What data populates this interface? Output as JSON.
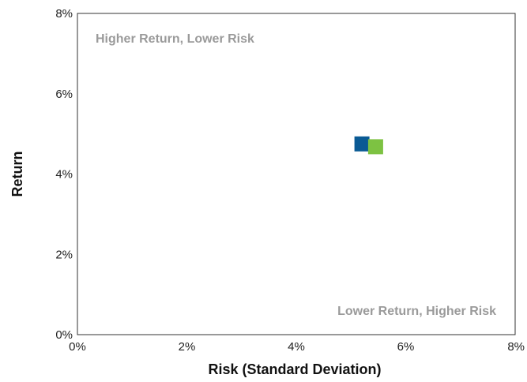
{
  "chart_data": {
    "type": "scatter",
    "title": "",
    "xlabel": "Risk (Standard Deviation)",
    "ylabel": "Return",
    "xlim": [
      0,
      8
    ],
    "ylim": [
      0,
      8
    ],
    "x_ticks": [
      "0%",
      "2%",
      "4%",
      "6%",
      "8%"
    ],
    "y_ticks": [
      "0%",
      "2%",
      "4%",
      "6%",
      "8%"
    ],
    "grid": false,
    "legend": "none",
    "series": [
      {
        "x": [
          5.2
        ],
        "y": [
          4.75
        ],
        "color": "#0a5a94",
        "marker": "square"
      },
      {
        "x": [
          5.45
        ],
        "y": [
          4.68
        ],
        "color": "#7dc242",
        "marker": "square"
      }
    ],
    "annotations": [
      {
        "text": "Higher Return, Lower Risk",
        "position": "top-left"
      },
      {
        "text": "Lower Return, Higher Risk",
        "position": "bottom-right"
      }
    ]
  }
}
